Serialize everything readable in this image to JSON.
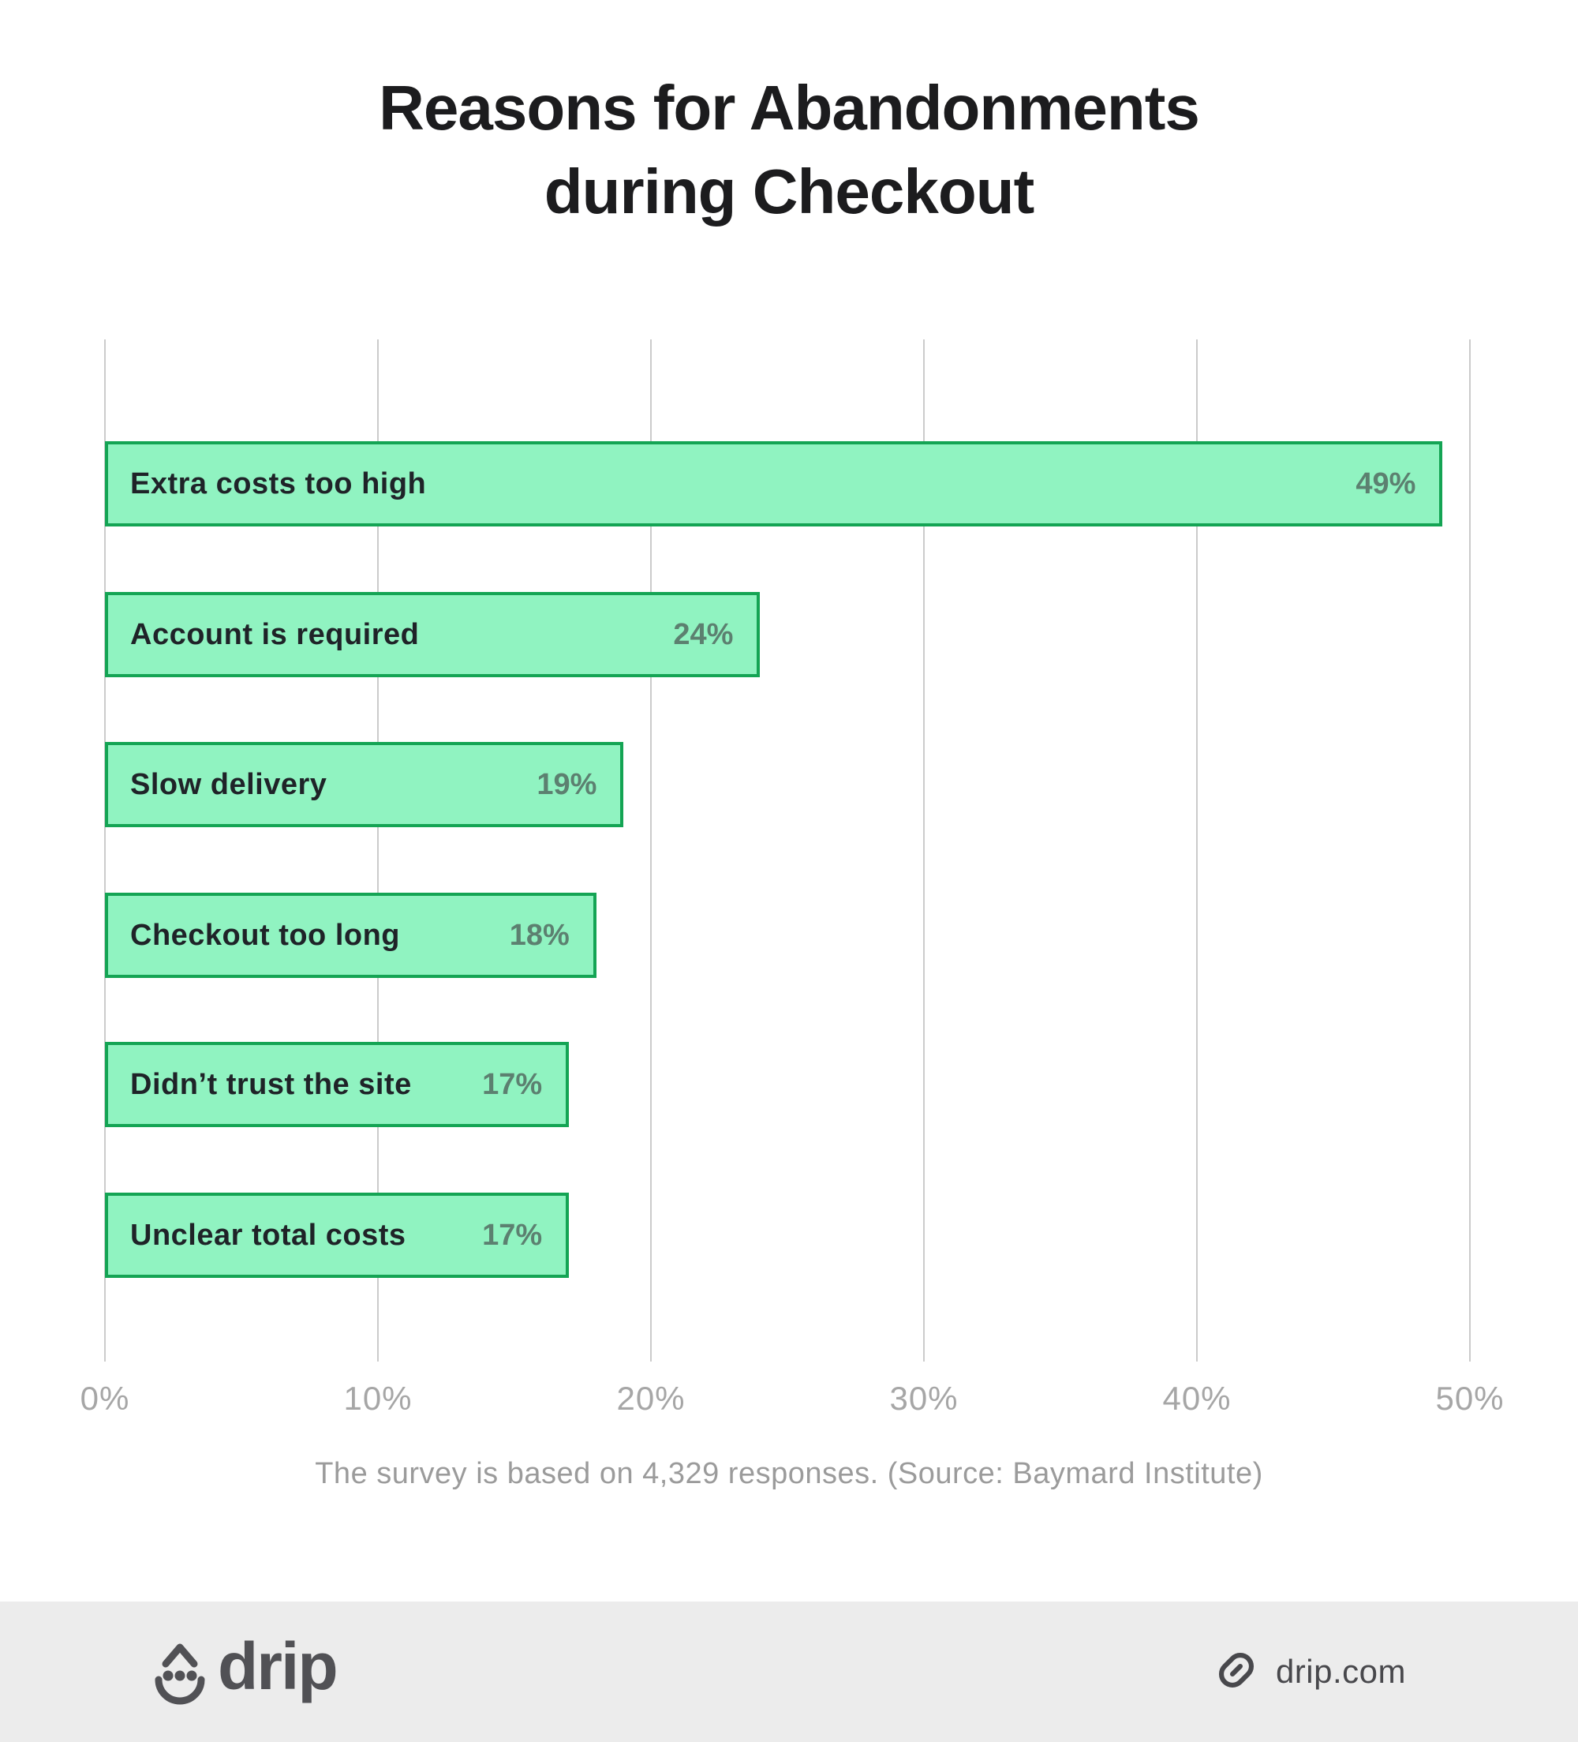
{
  "chart_data": {
    "type": "bar",
    "orientation": "horizontal",
    "title": "Reasons for Abandonments during Checkout",
    "title_lines": [
      "Reasons for Abandonments",
      "during Checkout"
    ],
    "categories": [
      "Extra costs too high",
      "Account is required",
      "Slow delivery",
      "Checkout too long",
      "Didn’t trust the site",
      "Unclear total costs"
    ],
    "values": [
      49,
      24,
      19,
      18,
      17,
      17
    ],
    "value_labels": [
      "49%",
      "24%",
      "19%",
      "18%",
      "17%",
      "17%"
    ],
    "xlim": [
      0,
      50
    ],
    "x_tick_labels": [
      "0%",
      "10%",
      "20%",
      "30%",
      "40%",
      "50%"
    ],
    "grid": true,
    "legend": "none",
    "caption": "The survey is based on 4,329 responses. (Source: Baymard Institute)",
    "colors": {
      "bar_fill": "#90f3c1",
      "bar_border": "#14a454",
      "bar_label_text": "#1f2328",
      "value_label_text": "#5c8070",
      "gridline": "#cbcbcb",
      "tick_label": "#a6a6a6",
      "title_text": "#1c1c1e",
      "caption_text": "#9b9b9b"
    }
  },
  "footer": {
    "background": "#ececec",
    "logo_text": "drip",
    "logo_color": "#515155",
    "link_label": "drip.com",
    "link_color": "#48484c"
  }
}
